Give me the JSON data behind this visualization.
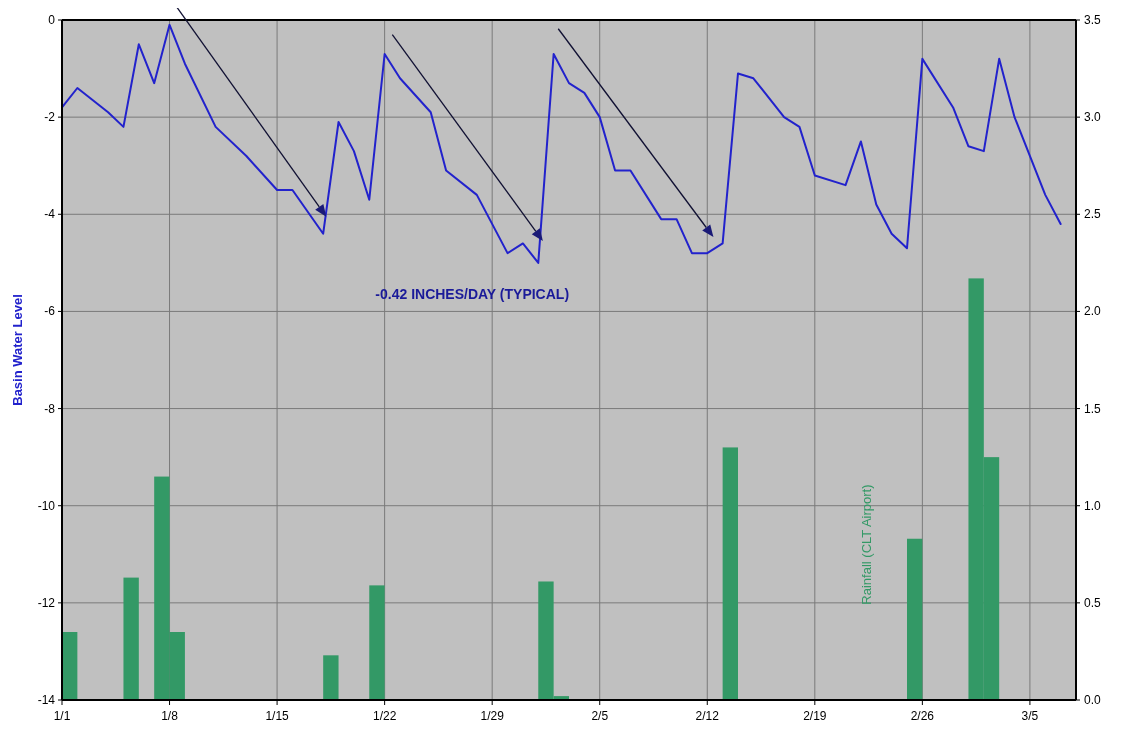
{
  "chart_data": {
    "type": "line",
    "ylabel": "Basin Water Level",
    "annotations": [
      "-0.42 INCHES/DAY (TYPICAL)"
    ],
    "xlim": [
      "--01-01",
      "--03-08"
    ],
    "xticks": [
      {
        "value": "--01-01",
        "label": "1/1"
      },
      {
        "value": "--01-08",
        "label": "1/8"
      },
      {
        "value": "--01-15",
        "label": "1/15"
      },
      {
        "value": "--01-22",
        "label": "1/22"
      },
      {
        "value": "--01-29",
        "label": "1/29"
      },
      {
        "value": "--02-05",
        "label": "2/5"
      },
      {
        "value": "--02-12",
        "label": "2/12"
      },
      {
        "value": "--02-19",
        "label": "2/19"
      },
      {
        "value": "--02-26",
        "label": "2/26"
      },
      {
        "value": "--03-05",
        "label": "3/5"
      }
    ],
    "ylim": [
      -14,
      0
    ],
    "yticks": [
      0,
      -2,
      -4,
      -6,
      -8,
      -10,
      -12,
      -14
    ],
    "y2lim": [
      0,
      3.5
    ],
    "y2ticks": [
      {
        "value": 0,
        "label": "0.0"
      },
      {
        "value": 0.5,
        "label": "0.5"
      },
      {
        "value": 1,
        "label": "1.0"
      },
      {
        "value": 1.5,
        "label": "1.5"
      },
      {
        "value": 2,
        "label": "2.0"
      },
      {
        "value": 2.5,
        "label": "2.5"
      },
      {
        "value": 3,
        "label": "3.0"
      },
      {
        "value": 3.5,
        "label": "3.5"
      }
    ],
    "grid": true,
    "series": [
      {
        "type": "bar",
        "axis": "y2",
        "name": "Rainfall (CLT Airport)",
        "color": "#339966",
        "x": [
          "--01-01T12:00",
          "--01-05T12:00",
          "--01-07T12:00",
          "--01-08T12:00",
          "--01-18T12:00",
          "--01-21T12:00",
          "--02-01T12:00",
          "--02-02T12:00",
          "--02-13T12:00",
          "--02-25T12:00",
          "--03-01T12:00",
          "--03-02T12:00"
        ],
        "values": [
          0.35,
          0.63,
          1.15,
          0.35,
          0.23,
          0.59,
          0.61,
          0.02,
          1.3,
          0.83,
          2.17,
          1.25
        ]
      },
      {
        "color": "#2222cc",
        "x": [
          "--01-01",
          "--01-02",
          "--01-04",
          "--01-05",
          "--01-06",
          "--01-07",
          "--01-08",
          "--01-09",
          "--01-11",
          "--01-13",
          "--01-15",
          "--01-16",
          "--01-18",
          "--01-19",
          "--01-20",
          "--01-21",
          "--01-22",
          "--01-23",
          "--01-25",
          "--01-26",
          "--01-28",
          "--01-30",
          "--01-31",
          "--02-01",
          "--02-02",
          "--02-03",
          "--02-04",
          "--02-05",
          "--02-06",
          "--02-07",
          "--02-09",
          "--02-10",
          "--02-11",
          "--02-12",
          "--02-13",
          "--02-14",
          "--02-15",
          "--02-17",
          "--02-18",
          "--02-19",
          "--02-21",
          "--02-22",
          "--02-23",
          "--02-24",
          "--02-25",
          "--02-26",
          "--02-28",
          "--03-01",
          "--03-02",
          "--03-03",
          "--03-04",
          "--03-06",
          "--03-07"
        ],
        "values": [
          -1.8,
          -1.4,
          -1.9,
          -2.2,
          -0.5,
          -1.3,
          -0.1,
          -0.9,
          -2.2,
          -2.8,
          -3.5,
          -3.5,
          -4.4,
          -2.1,
          -2.7,
          -3.7,
          -0.7,
          -1.2,
          -1.9,
          -3.1,
          -3.6,
          -4.8,
          -4.6,
          -5.0,
          -0.7,
          -1.3,
          -1.5,
          -2.0,
          -3.1,
          -3.1,
          -4.1,
          -4.1,
          -4.8,
          -4.8,
          -4.6,
          -1.1,
          -1.2,
          -2.0,
          -2.2,
          -3.2,
          -3.4,
          -2.5,
          -3.8,
          -4.4,
          -4.7,
          -0.8,
          -1.8,
          -2.6,
          -2.7,
          -0.8,
          -2.0,
          -3.6,
          -4.2
        ]
      }
    ]
  }
}
